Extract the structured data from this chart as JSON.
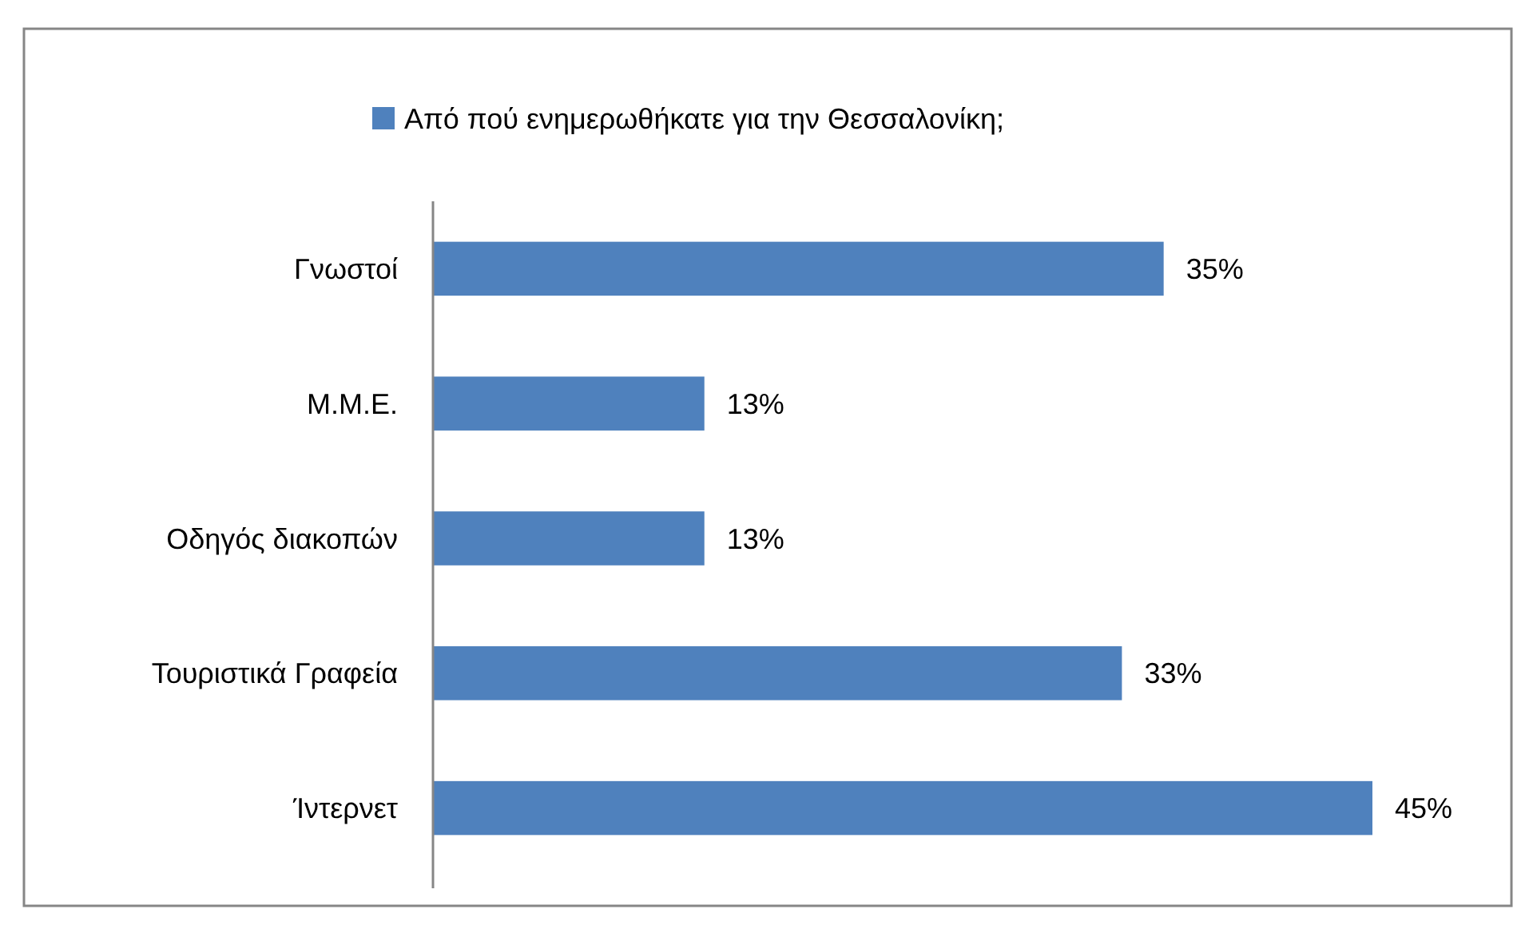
{
  "chart_data": {
    "type": "bar",
    "orientation": "horizontal",
    "legend": "top",
    "categories": [
      "Γνωστοί",
      "Μ.Μ.Ε.",
      "Οδηγός διακοπών",
      "Τουριστικά Γραφεία",
      "Ίντερνετ"
    ],
    "series": [
      {
        "name": "Από πού ενημερωθήκατε για την Θεσσαλονίκη;",
        "color": "#4f81bd",
        "values": [
          35,
          13,
          13,
          33,
          45
        ],
        "value_labels": [
          "35%",
          "13%",
          "13%",
          "33%",
          "45%"
        ]
      }
    ]
  }
}
